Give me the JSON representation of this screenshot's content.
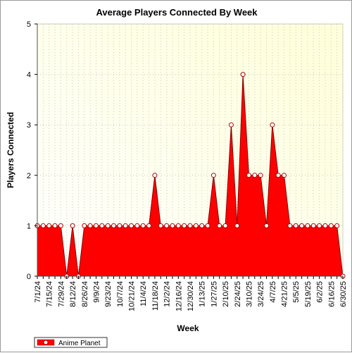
{
  "chart_data": {
    "type": "area",
    "title": "Average Players Connected By Week",
    "xlabel": "Week",
    "ylabel": "Players Connected",
    "ylim": [
      0,
      5
    ],
    "yticks": [
      0,
      1,
      2,
      3,
      4,
      5
    ],
    "grid": true,
    "legend_position": "bottom-left",
    "colors": {
      "area_fill": "#ff0000",
      "area_edge": "#8b0000",
      "plot_background_top_right": "#ffffe0",
      "plot_background_bottom_left": "#ffffff",
      "grid": "#c8c8c8",
      "marker_fill": "#ffffff",
      "marker_edge": "#b00000"
    },
    "x_tick_labels": [
      "7/1/24",
      "7/15/24",
      "7/29/24",
      "8/12/24",
      "8/26/24",
      "9/9/24",
      "9/23/24",
      "10/7/24",
      "10/21/24",
      "11/4/24",
      "11/18/24",
      "12/2/24",
      "12/16/24",
      "12/30/24",
      "1/13/25",
      "1/27/25",
      "2/10/25",
      "2/24/25",
      "3/10/25",
      "3/24/25",
      "4/7/25",
      "4/21/25",
      "5/5/25",
      "5/19/25",
      "6/2/25",
      "6/16/25",
      "6/30/25"
    ],
    "x": [
      "7/1/24",
      "7/8/24",
      "7/15/24",
      "7/22/24",
      "7/29/24",
      "8/5/24",
      "8/12/24",
      "8/19/24",
      "8/26/24",
      "9/2/24",
      "9/9/24",
      "9/16/24",
      "9/23/24",
      "9/30/24",
      "10/7/24",
      "10/14/24",
      "10/21/24",
      "10/28/24",
      "11/4/24",
      "11/11/24",
      "11/18/24",
      "11/25/24",
      "12/2/24",
      "12/9/24",
      "12/16/24",
      "12/23/24",
      "12/30/24",
      "1/6/25",
      "1/13/25",
      "1/20/25",
      "1/27/25",
      "2/3/25",
      "2/10/25",
      "2/17/25",
      "2/24/25",
      "3/3/25",
      "3/10/25",
      "3/17/25",
      "3/24/25",
      "3/31/25",
      "4/7/25",
      "4/14/25",
      "4/21/25",
      "4/28/25",
      "5/5/25",
      "5/12/25",
      "5/19/25",
      "5/26/25",
      "6/2/25",
      "6/9/25",
      "6/16/25",
      "6/23/25",
      "6/30/25"
    ],
    "series": [
      {
        "name": "Anime Planet",
        "values": [
          1,
          1,
          1,
          1,
          1,
          0,
          1,
          0,
          1,
          1,
          1,
          1,
          1,
          1,
          1,
          1,
          1,
          1,
          1,
          1,
          2,
          1,
          1,
          1,
          1,
          1,
          1,
          1,
          1,
          1,
          2,
          1,
          1,
          3,
          1,
          4,
          2,
          2,
          2,
          1,
          3,
          2,
          2,
          1,
          1,
          1,
          1,
          1,
          1,
          1,
          1,
          1,
          0
        ]
      }
    ]
  }
}
